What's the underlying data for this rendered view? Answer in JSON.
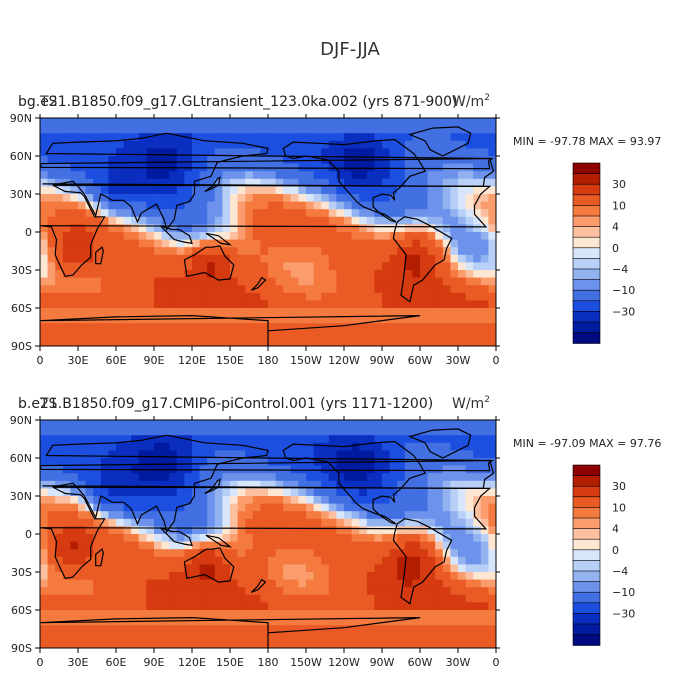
{
  "page_title": "DJF-JJA",
  "chart_data": [
    {
      "type": "heatmap",
      "case": "bg.e21.B1850.f09_g17.GLtransient_123.0ka.002",
      "years": "(yrs 871-900)",
      "variable": "TS",
      "units": "W/m2",
      "subtitle_left": "bg.e21.B1850.f09_g17.GLtransient_123.0ka.002 (yrs 871-900)",
      "subtitle_overlay": "TS",
      "subtitle_units": "W/m",
      "subtitle_units_sup": "2",
      "stats": "MIN = -97.78  MAX =  93.97",
      "min": -97.78,
      "max": 93.97,
      "x_ticks": [
        "0",
        "30E",
        "60E",
        "90E",
        "120E",
        "150E",
        "180",
        "150W",
        "120W",
        "90W",
        "60W",
        "30W",
        "0"
      ],
      "y_ticks": [
        "90N",
        "60N",
        "30N",
        "0",
        "30S",
        "60S",
        "90S"
      ],
      "xlim": [
        0,
        360
      ],
      "ylim": [
        -90,
        90
      ]
    },
    {
      "type": "heatmap",
      "case": "b.e21.B1850.f09_g17.CMIP6-piControl.001",
      "years": "(yrs 1171-1200)",
      "variable": "TS",
      "units": "W/m2",
      "subtitle_left": "b.e21.B1850.f09_g17.CMIP6-piControl.001 (yrs 1171-1200)",
      "subtitle_overlay": "TS",
      "subtitle_units": "W/m",
      "subtitle_units_sup": "2",
      "stats": "MIN = -97.09  MAX =  97.76",
      "min": -97.09,
      "max": 97.76,
      "x_ticks": [
        "0",
        "30E",
        "60E",
        "90E",
        "120E",
        "150E",
        "180",
        "150W",
        "120W",
        "90W",
        "60W",
        "30W",
        "0"
      ],
      "y_ticks": [
        "90N",
        "60N",
        "30N",
        "0",
        "30S",
        "60S",
        "90S"
      ],
      "xlim": [
        0,
        360
      ],
      "ylim": [
        -90,
        90
      ]
    }
  ],
  "colorbar": {
    "colors": [
      "#8c0000",
      "#b31d00",
      "#d53a10",
      "#ea5a24",
      "#f47a40",
      "#fa9c6c",
      "#fcc0a0",
      "#fde6d2",
      "#d8e6fb",
      "#b8d0f7",
      "#92b2f0",
      "#6c92eb",
      "#4270e3",
      "#1c4ee0",
      "#0a2ec0",
      "#001aa0",
      "#000a80"
    ],
    "labels": [
      "30",
      "10",
      "4",
      "0",
      "−4",
      "−10",
      "−30"
    ],
    "label_after_box": [
      1,
      3,
      5,
      7,
      9,
      11,
      13
    ]
  }
}
